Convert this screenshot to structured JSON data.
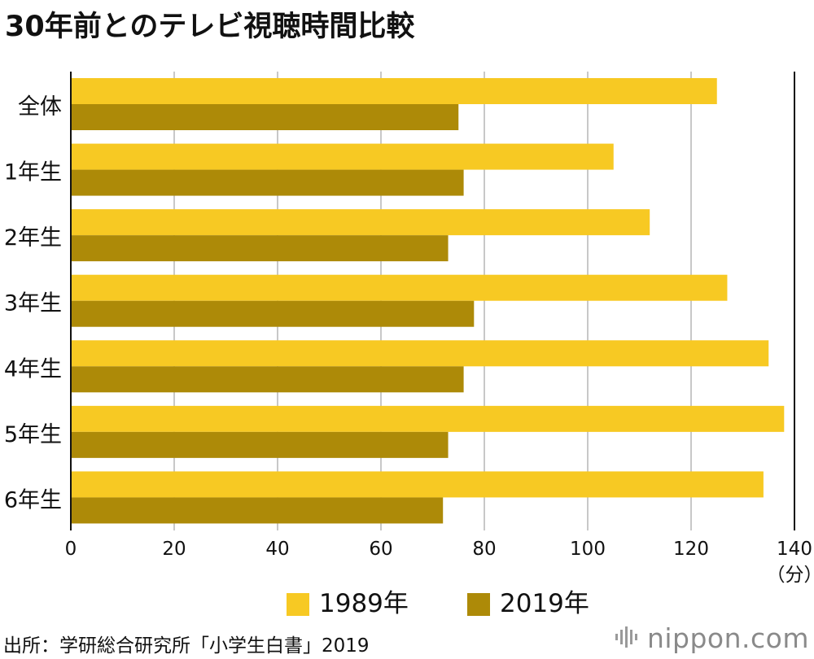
{
  "title": "30年前とのテレビ視聴時間比較",
  "chart_data": {
    "type": "bar",
    "orientation": "horizontal",
    "categories": [
      "全体",
      "1年生",
      "2年生",
      "3年生",
      "4年生",
      "5年生",
      "6年生"
    ],
    "series": [
      {
        "name": "1989年",
        "color": "#F7C923",
        "values": [
          125,
          105,
          112,
          127,
          135,
          138,
          134
        ]
      },
      {
        "name": "2019年",
        "color": "#AD8A08",
        "values": [
          75,
          76,
          73,
          78,
          76,
          73,
          72
        ]
      }
    ],
    "xlim": [
      0,
      140
    ],
    "xticks": [
      "0",
      "20",
      "40",
      "60",
      "80",
      "100",
      "120",
      "140"
    ],
    "xunit": "（分）",
    "grid": true,
    "legend_position": "bottom"
  },
  "source": "出所：学研総合研究所「小学生白書」2019",
  "logo": {
    "text": "nippon.com",
    "icon": "sound-bars-icon"
  }
}
